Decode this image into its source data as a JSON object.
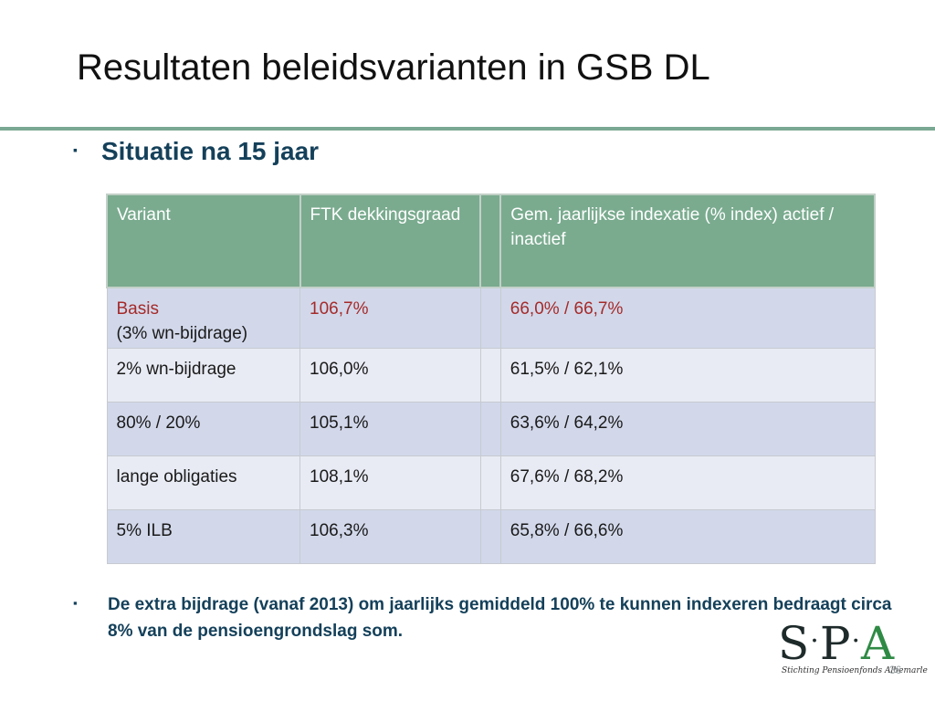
{
  "slide": {
    "title": "Resultaten beleidsvarianten in GSB DL",
    "bullet_marker": "▪",
    "heading": "Situatie na 15 jaar",
    "note": "De extra bijdrage (vanaf 2013) om jaarlijks gemiddeld 100% te kunnen indexeren bedraagt circa 8% van de pensioengrondslag som.",
    "page_number": "36"
  },
  "table": {
    "headers": [
      "Variant",
      "FTK dekkingsgraad",
      "",
      "Gem. jaarlijkse indexatie (% index) actief / inactief"
    ],
    "rows": [
      {
        "variant": "Basis",
        "variant_sub": "(3% wn-bijdrage)",
        "ftk": "106,7%",
        "indexatie": "66,0% / 66,7%"
      },
      {
        "variant": "2% wn-bijdrage",
        "variant_sub": "",
        "ftk": "106,0%",
        "indexatie": "61,5% / 62,1%"
      },
      {
        "variant": "80% / 20%",
        "variant_sub": "",
        "ftk": "105,1%",
        "indexatie": "63,6% / 64,2%"
      },
      {
        "variant": "lange obligaties",
        "variant_sub": "",
        "ftk": "108,1%",
        "indexatie": "67,6% / 68,2%"
      },
      {
        "variant": "5% ILB",
        "variant_sub": "",
        "ftk": "106,3%",
        "indexatie": "65,8% / 66,6%"
      }
    ]
  },
  "logo": {
    "letter_s": "S",
    "dot": "·",
    "letter_p": "P",
    "letter_a": "A",
    "subtitle": "Stichting Pensioenfonds Albemarle"
  },
  "colors": {
    "header_bg": "#7aab8f",
    "rule": "#7aa892",
    "heading_text": "#14405a",
    "accent_text": "#a52a2a"
  }
}
